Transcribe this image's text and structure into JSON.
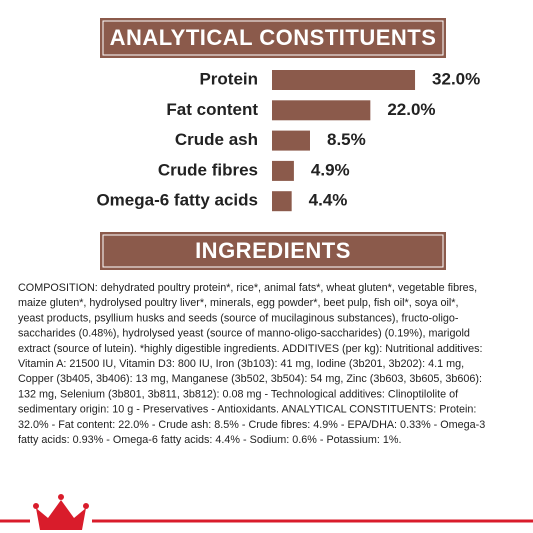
{
  "chart_data": {
    "type": "bar",
    "orientation": "horizontal",
    "title": "ANALYTICAL CONSTITUENTS",
    "categories": [
      "Protein",
      "Fat content",
      "Crude ash",
      "Crude fibres",
      "Omega-6 fatty acids"
    ],
    "values": [
      32.0,
      22.0,
      8.5,
      4.9,
      4.4
    ],
    "value_labels": [
      "32.0%",
      "22.0%",
      "8.5%",
      "4.9%",
      "4.4%"
    ],
    "color": "#8b5a4b"
  },
  "ingredients": {
    "title": "INGREDIENTS",
    "lines": [
      "COMPOSITION: dehydrated poultry protein*, rice*, animal fats*, wheat gluten*, vegetable fibres,",
      "maize gluten*, hydrolysed poultry liver*, minerals, egg powder*, beet pulp, fish oil*, soya oil*,",
      "yeast products, psyllium husks and seeds (source of mucilaginous substances), fructo-oligo-",
      "saccharides (0.48%), hydrolysed yeast (source of manno-oligo-saccharides) (0.19%), marigold",
      "extract (source of lutein). *highly digestible ingredients. ADDITIVES (per kg): Nutritional additives:",
      "Vitamin A: 21500 IU, Vitamin D3: 800 IU, Iron (3b103): 41 mg, Iodine (3b201, 3b202): 4.1 mg,",
      "Copper (3b405, 3b406): 13 mg, Manganese (3b502, 3b504): 54 mg, Zinc (3b603, 3b605, 3b606):",
      "132 mg, Selenium (3b801, 3b811, 3b812): 0.08 mg - Technological additives: Clinoptilolite of",
      "sedimentary origin: 10 g - Preservatives - Antioxidants. ANALYTICAL CONSTITUENTS: Protein:",
      "32.0% - Fat content: 22.0% - Crude ash: 8.5% - Crude fibres: 4.9% - EPA/DHA: 0.33% - Omega-3",
      "fatty acids: 0.93% - Omega-6 fatty acids: 4.4% - Sodium: 0.6% - Potassium: 1%."
    ]
  }
}
